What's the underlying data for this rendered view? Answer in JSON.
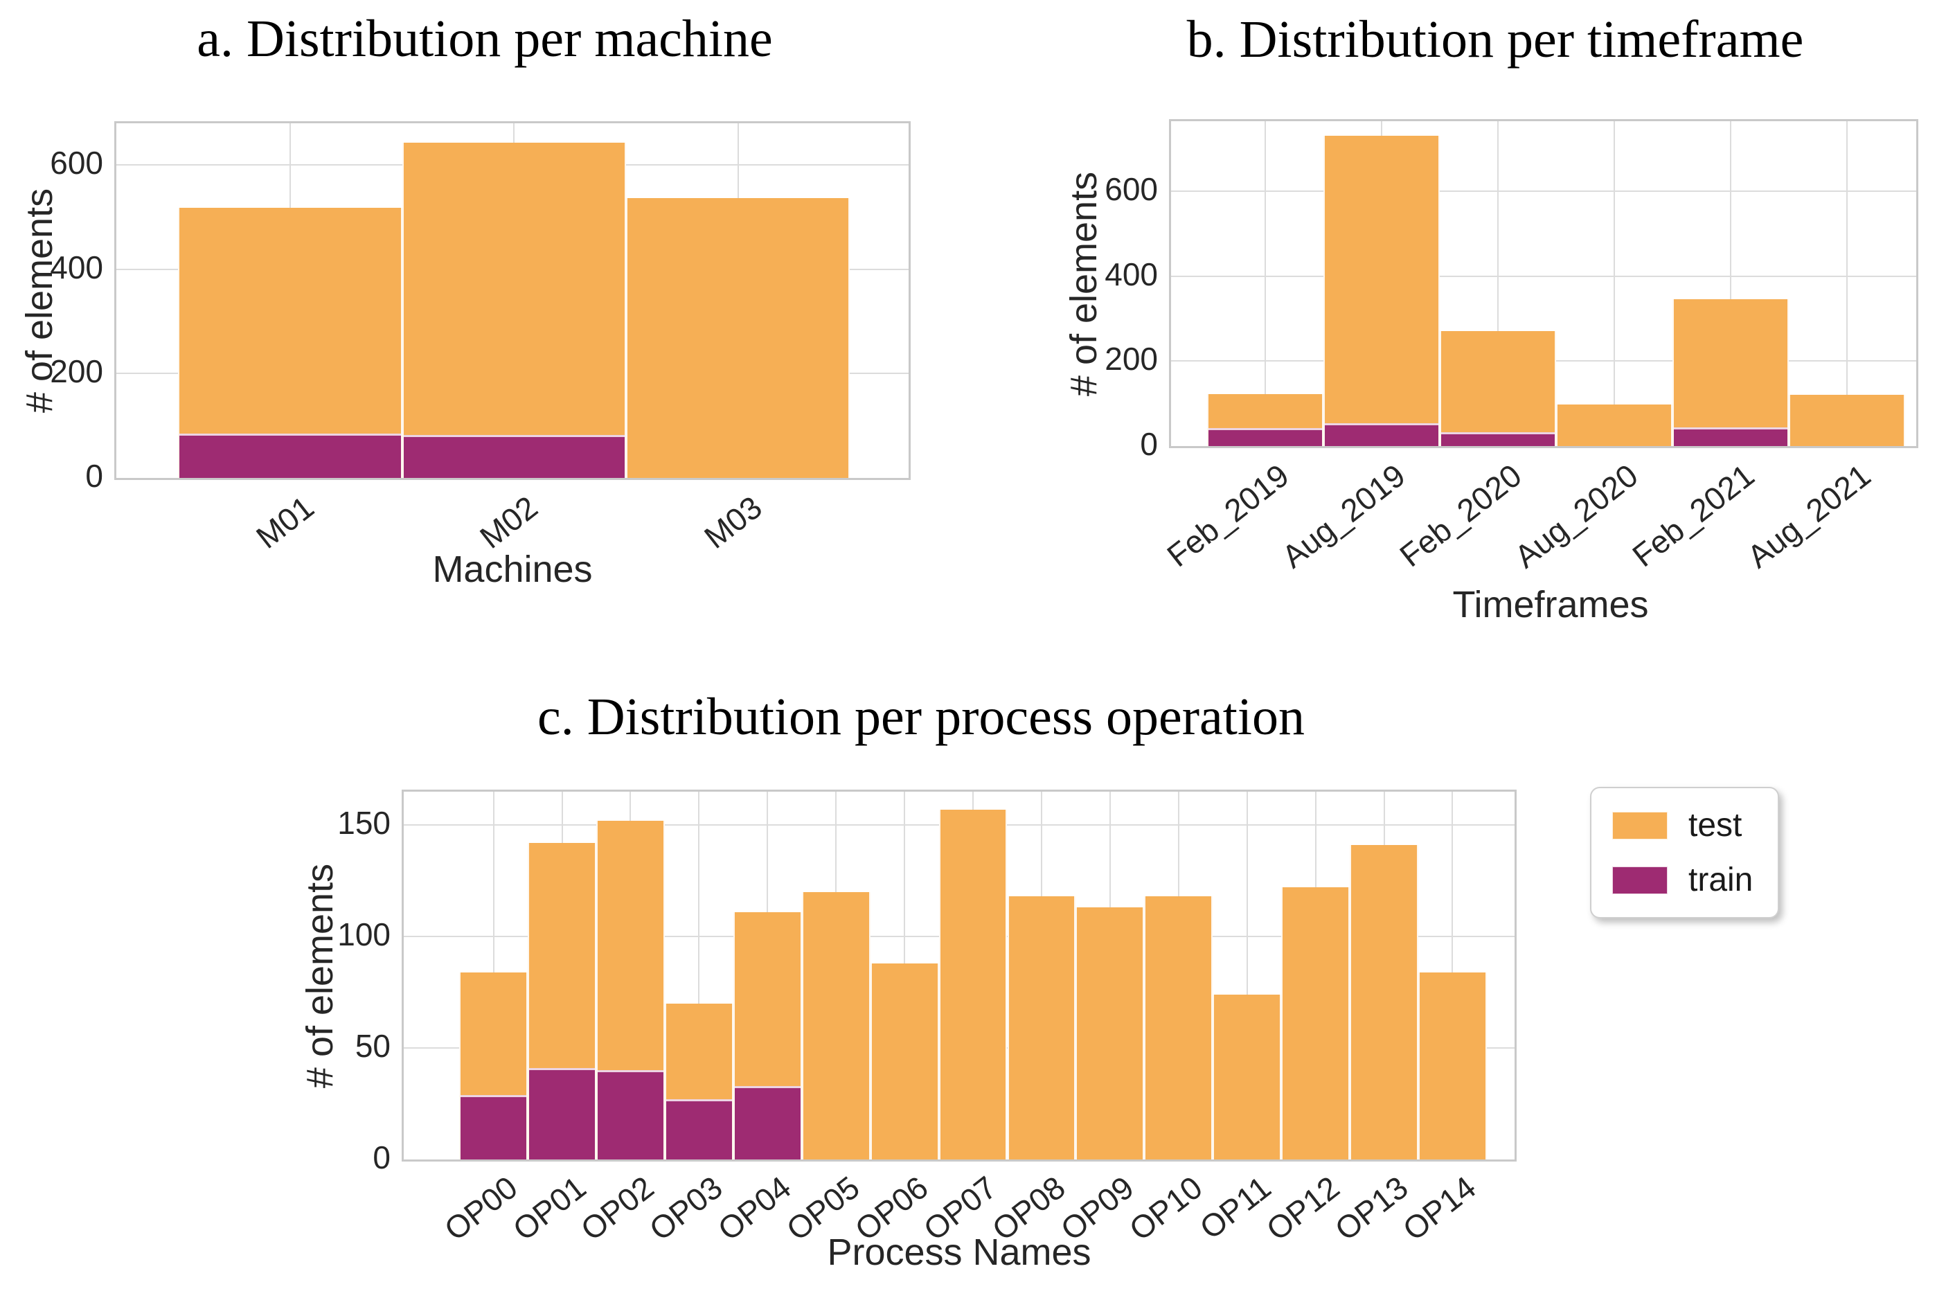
{
  "figure": {
    "background": "#ffffff"
  },
  "colors": {
    "test": "#F6AF55",
    "train": "#9E2B72",
    "grid": "#dcdcdc",
    "axis_border": "#c9c9c9",
    "tick_text": "#262626",
    "title_text": "#000000"
  },
  "legend": {
    "items": [
      {
        "label": "test",
        "color": "#F6AF55"
      },
      {
        "label": "train",
        "color": "#9E2B72"
      }
    ],
    "position": "right-of-chart-c"
  },
  "chart_data": [
    {
      "id": "machines",
      "type": "bar",
      "stacked": true,
      "title": "a. Distribution per machine",
      "xlabel": "Machines",
      "ylabel": "# of elements",
      "categories": [
        "M01",
        "M02",
        "M03"
      ],
      "series": [
        {
          "name": "train",
          "color": "#9E2B72",
          "values": [
            85,
            82,
            0
          ]
        },
        {
          "name": "test",
          "color": "#F6AF55",
          "values": [
            433,
            561,
            537
          ]
        }
      ],
      "bar_totals": [
        518,
        643,
        537
      ],
      "yticks": [
        0,
        200,
        400,
        600
      ],
      "ylim": [
        0,
        680
      ],
      "grid": true,
      "legend_shown": false
    },
    {
      "id": "timeframes",
      "type": "bar",
      "stacked": true,
      "title": "b. Distribution per timeframe",
      "xlabel": "Timeframes",
      "ylabel": "# of elements",
      "categories": [
        "Feb_2019",
        "Aug_2019",
        "Feb_2020",
        "Aug_2020",
        "Feb_2021",
        "Aug_2021"
      ],
      "series": [
        {
          "name": "train",
          "color": "#9E2B72",
          "values": [
            43,
            54,
            33,
            0,
            44,
            0
          ]
        },
        {
          "name": "test",
          "color": "#F6AF55",
          "values": [
            80,
            676,
            237,
            98,
            302,
            120
          ]
        }
      ],
      "bar_totals": [
        123,
        730,
        270,
        98,
        346,
        120
      ],
      "yticks": [
        0,
        200,
        400,
        600
      ],
      "ylim": [
        0,
        765
      ],
      "grid": true,
      "legend_shown": false
    },
    {
      "id": "process-operations",
      "type": "bar",
      "stacked": true,
      "title": "c. Distribution per process operation",
      "xlabel": "Process Names",
      "ylabel": "# of elements",
      "categories": [
        "OP00",
        "OP01",
        "OP02",
        "OP03",
        "OP04",
        "OP05",
        "OP06",
        "OP07",
        "OP08",
        "OP09",
        "OP10",
        "OP11",
        "OP12",
        "OP13",
        "OP14"
      ],
      "series": [
        {
          "name": "train",
          "color": "#9E2B72",
          "values": [
            29,
            41,
            40,
            27,
            33,
            0,
            0,
            0,
            0,
            0,
            0,
            0,
            0,
            0,
            0
          ]
        },
        {
          "name": "test",
          "color": "#F6AF55",
          "values": [
            55,
            101,
            112,
            43,
            78,
            120,
            88,
            157,
            118,
            113,
            118,
            74,
            122,
            141,
            84
          ]
        }
      ],
      "bar_totals": [
        84,
        142,
        152,
        70,
        111,
        120,
        88,
        157,
        118,
        113,
        118,
        74,
        122,
        141,
        84
      ],
      "yticks": [
        0,
        50,
        100,
        150
      ],
      "ylim": [
        0,
        165
      ],
      "grid": true,
      "legend_shown": true
    }
  ]
}
